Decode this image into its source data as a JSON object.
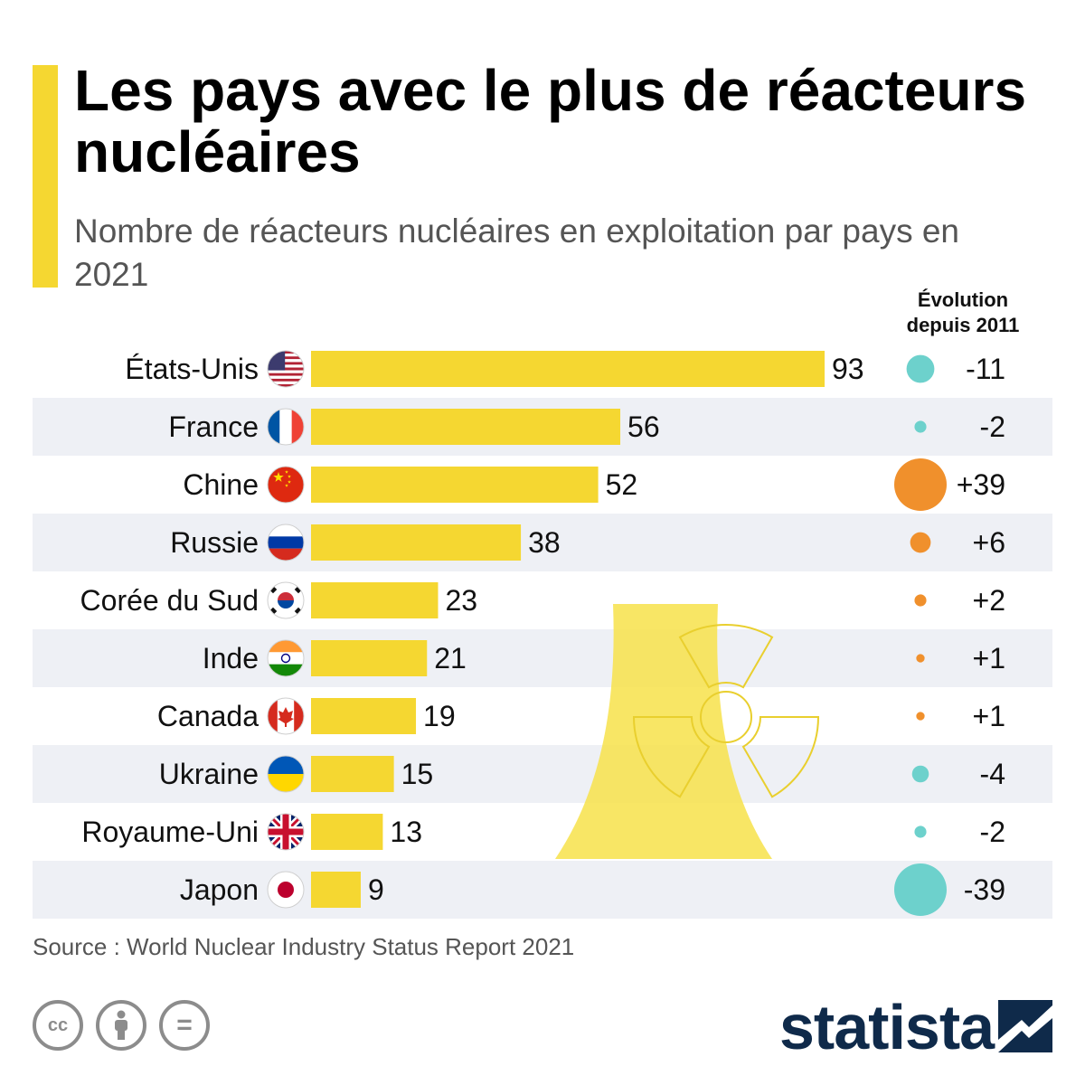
{
  "title": "Les pays avec le plus de réacteurs nucléaires",
  "subtitle": "Nombre de réacteurs nucléaires en exploitation par pays en 2021",
  "evolution_header": "Évolution depuis 2011",
  "source": "Source : World Nuclear Industry Status Report 2021",
  "brand": "statista",
  "cc_labels": [
    "cc",
    "="
  ],
  "colors": {
    "accent": "#f5d731",
    "bar": "#f5d731",
    "positive": "#f0902c",
    "negative": "#6dd1cc",
    "stripe": "#eef0f5",
    "brand": "#0f2a4a",
    "tower": "#f7e24a"
  },
  "icons": [
    "us-flag-icon",
    "fr-flag-icon",
    "cn-flag-icon",
    "ru-flag-icon",
    "kr-flag-icon",
    "in-flag-icon",
    "ca-flag-icon",
    "ua-flag-icon",
    "gb-flag-icon",
    "jp-flag-icon",
    "cooling-tower-icon",
    "radiation-icon",
    "cc-icon",
    "person-icon",
    "equal-icon",
    "statista-logo-icon"
  ],
  "chart_data": {
    "type": "bar",
    "orientation": "horizontal",
    "categories": [
      "États-Unis",
      "France",
      "Chine",
      "Russie",
      "Corée du Sud",
      "Inde",
      "Canada",
      "Ukraine",
      "Royaume-Uni",
      "Japon"
    ],
    "values": [
      93,
      56,
      52,
      38,
      23,
      21,
      19,
      15,
      13,
      9
    ],
    "change_labels": [
      "-11",
      "-2",
      "+39",
      "+6",
      "+2",
      "+1",
      "+1",
      "-4",
      "-2",
      "-39"
    ],
    "change_values": [
      -11,
      -2,
      39,
      6,
      2,
      1,
      1,
      -4,
      -2,
      -39
    ],
    "flags": [
      "us",
      "fr",
      "cn",
      "ru",
      "kr",
      "in",
      "ca",
      "ua",
      "gb",
      "jp"
    ],
    "xlim": [
      0,
      93
    ],
    "grid": false,
    "legend": "none"
  }
}
